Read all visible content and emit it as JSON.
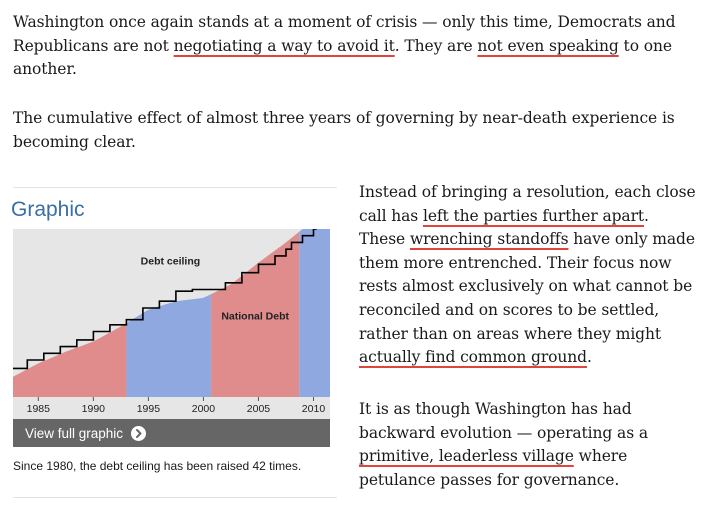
{
  "article": {
    "p1": [
      {
        "t": "Washington once again stands at a moment of crisis — only this time, Democrats and Republicans are not "
      },
      {
        "t": "negotiating a way to avoid it",
        "hl": true
      },
      {
        "t": ". They are "
      },
      {
        "t": "not even speaking",
        "hl": true
      },
      {
        "t": " to one another."
      }
    ],
    "p2": [
      {
        "t": "The cumulative effect of almost three years of governing by near-death experience is becoming clear."
      }
    ],
    "p3": [
      {
        "t": "Instead of bringing a resolution, each close call has "
      },
      {
        "t": "left the parties further apart",
        "hl": true
      },
      {
        "t": ". These "
      },
      {
        "t": "wrenching standoffs",
        "hl": true
      },
      {
        "t": " have only made them more entrenched. Their focus now rests almost exclusively on what cannot be reconciled and on scores to be settled, rather than on areas where they might "
      },
      {
        "t": "actually find common ground",
        "hl": true
      },
      {
        "t": "."
      }
    ],
    "p4": [
      {
        "t": "It is as though Washington has had backward evolution — operating as a "
      },
      {
        "t": "primitive, leaderless village",
        "hl": true
      },
      {
        "t": " where petulance passes for governance."
      }
    ]
  },
  "graphic": {
    "title": "Graphic",
    "view_full_label": "View full graphic",
    "caption": "Since 1980, the debt ceiling has been raised 42 times.",
    "icon": "chevron-right-icon"
  },
  "chart_data": {
    "type": "area",
    "title": "",
    "xlabel": "",
    "ylabel": "",
    "xlim": [
      1982.7,
      2011.5
    ],
    "ylim": [
      0,
      100
    ],
    "x_ticks": [
      "1985",
      "1990",
      "1995",
      "2000",
      "2005",
      "2010"
    ],
    "x_tick_values": [
      1985,
      1990,
      1995,
      2000,
      2005,
      2010
    ],
    "annotations": [
      {
        "text": "Debt ceiling",
        "x": 1997,
        "y": 79
      },
      {
        "text": "National Debt",
        "x": 2004.7,
        "y": 46
      }
    ],
    "series": [
      {
        "name": "National Debt",
        "colors_by_period": [
          {
            "from": 1982.7,
            "to": 1993.0,
            "color": "#e08c8c"
          },
          {
            "from": 1993.0,
            "to": 2000.7,
            "color": "#8fa8e0"
          },
          {
            "from": 2000.7,
            "to": 2008.7,
            "color": "#e08c8c"
          },
          {
            "from": 2008.7,
            "to": 2011.5,
            "color": "#8fa8e0"
          }
        ],
        "x": [
          1982.7,
          1985,
          1987.5,
          1990,
          1992.5,
          1995,
          1997.5,
          2000,
          2002.5,
          2005,
          2007.5,
          2009,
          2011.5
        ],
        "values": [
          12,
          20,
          27,
          33,
          42,
          52,
          57,
          59,
          67,
          80,
          92,
          100,
          100
        ]
      },
      {
        "name": "Debt ceiling",
        "style": "step",
        "color": "#000000",
        "x": [
          1982.7,
          1984,
          1985.5,
          1987,
          1988.5,
          1990,
          1991.5,
          1993,
          1994.5,
          1996,
          1997.5,
          1999,
          2002,
          2003.5,
          2005,
          2006.5,
          2007.5,
          2008,
          2009,
          2010
        ],
        "values": [
          17,
          22,
          26,
          30,
          34,
          39,
          43,
          46,
          53,
          57,
          63,
          64,
          68,
          74,
          79,
          84,
          88,
          92,
          96,
          100
        ]
      }
    ]
  }
}
